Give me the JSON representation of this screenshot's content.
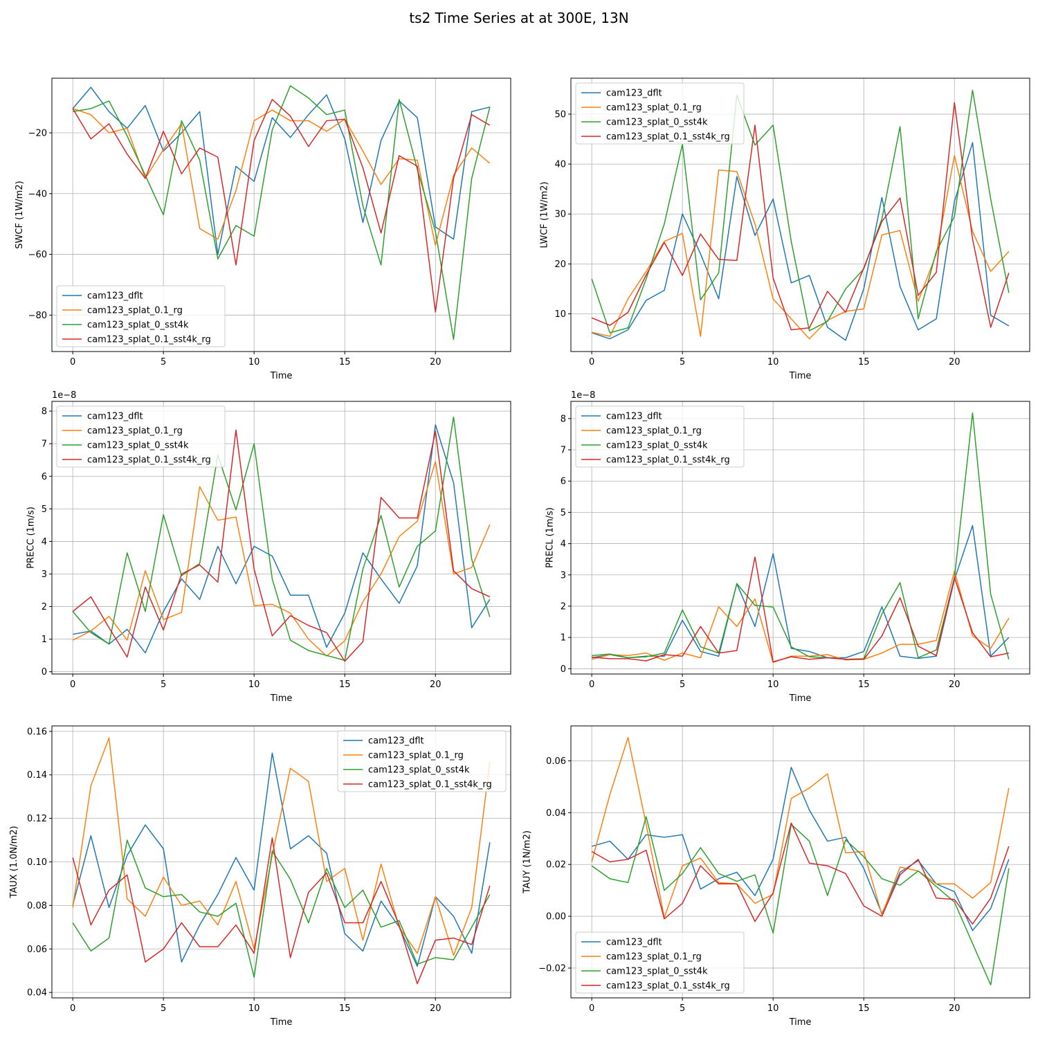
{
  "figure": {
    "title": "ts2 Time Series at at 300E, 13N"
  },
  "colors": {
    "dflt": "#1f77b4",
    "splat_rg": "#ff7f0e",
    "sst4k": "#2ca02c",
    "sst4k_rg": "#d62728",
    "grid": "#b0b0b0"
  },
  "chart_data": [
    {
      "type": "line",
      "xlabel": "Time",
      "ylabel": "SWCF (1W/m2)",
      "offset_text": "",
      "xlim": [
        -1.15,
        24.15
      ],
      "ylim": [
        -92,
        -2
      ],
      "xticks": [
        0,
        5,
        10,
        15,
        20
      ],
      "xtick_labels": [
        "0",
        "5",
        "10",
        "15",
        "20"
      ],
      "yticks": [
        -80,
        -60,
        -40,
        -20
      ],
      "ytick_labels": [
        "−80",
        "−60",
        "−40",
        "−20"
      ],
      "legend_loc": "lower-left",
      "x": [
        0,
        1,
        2,
        3,
        4,
        5,
        6,
        7,
        8,
        9,
        10,
        11,
        12,
        13,
        14,
        15,
        16,
        17,
        18,
        19,
        20,
        21,
        22,
        23
      ],
      "series": [
        {
          "name": "cam123_dflt",
          "color_key": "dflt",
          "values": [
            -12,
            -5,
            -13,
            -18.5,
            -11,
            -26,
            -20,
            -13,
            -60,
            -31,
            -36,
            -15,
            -21.5,
            -14,
            -7.5,
            -22,
            -49.5,
            -22.5,
            -9.5,
            -15,
            -51,
            -55,
            -13,
            -11.5
          ]
        },
        {
          "name": "cam123_splat_0.1_rg",
          "color_key": "splat_rg",
          "values": [
            -12,
            -14,
            -20,
            -18.5,
            -35,
            -25.5,
            -17,
            -51.5,
            -55,
            -39,
            -16,
            -12.5,
            -16,
            -16,
            -19.5,
            -15.5,
            -26,
            -37,
            -28.5,
            -29,
            -57,
            -34,
            -25,
            -30
          ]
        },
        {
          "name": "cam123_splat_0_sst4k",
          "color_key": "sst4k",
          "values": [
            -13,
            -12,
            -9.5,
            -21,
            -34,
            -47,
            -16,
            -29,
            -61.5,
            -50.5,
            -54,
            -19,
            -4.5,
            -8.5,
            -14,
            -12.5,
            -44,
            -63.5,
            -9,
            -32,
            -52.5,
            -88,
            -35,
            -11.5
          ]
        },
        {
          "name": "cam123_splat_0.1_sst4k_rg",
          "color_key": "sst4k_rg",
          "values": [
            -12,
            -22,
            -17,
            -27,
            -35,
            -19.5,
            -33.5,
            -25,
            -28,
            -63.5,
            -22.5,
            -9,
            -14.5,
            -24.5,
            -16,
            -15.5,
            -31.5,
            -53,
            -27.5,
            -31,
            -79,
            -35,
            -14,
            -17.5
          ]
        }
      ]
    },
    {
      "type": "line",
      "xlabel": "Time",
      "ylabel": "LWCF (1W/m2)",
      "offset_text": "",
      "xlim": [
        -1.15,
        24.15
      ],
      "ylim": [
        2.45,
        57.2
      ],
      "xticks": [
        0,
        5,
        10,
        15,
        20
      ],
      "xtick_labels": [
        "0",
        "5",
        "10",
        "15",
        "20"
      ],
      "yticks": [
        10,
        20,
        30,
        40,
        50
      ],
      "ytick_labels": [
        "10",
        "20",
        "30",
        "40",
        "50"
      ],
      "legend_loc": "upper-left",
      "x": [
        0,
        1,
        2,
        3,
        4,
        5,
        6,
        7,
        8,
        9,
        10,
        11,
        12,
        13,
        14,
        15,
        16,
        17,
        18,
        19,
        20,
        21,
        22,
        23
      ],
      "series": [
        {
          "name": "cam123_dflt",
          "color_key": "dflt",
          "values": [
            6.2,
            5,
            6.8,
            12.7,
            14.7,
            30,
            22,
            13,
            37.5,
            25.7,
            33,
            16.2,
            17.7,
            7.3,
            4.7,
            15,
            33.3,
            15.5,
            6.8,
            9,
            32.5,
            44.3,
            9.7,
            7.6
          ]
        },
        {
          "name": "cam123_splat_0.1_rg",
          "color_key": "splat_rg",
          "values": [
            6.3,
            5.5,
            13,
            18.5,
            24.5,
            26.1,
            5.5,
            38.8,
            38.5,
            28,
            13,
            9,
            5,
            8.7,
            10.5,
            11,
            25.8,
            26.7,
            12.5,
            22,
            41.7,
            26.5,
            18.5,
            22.5
          ]
        },
        {
          "name": "cam123_splat_0_sst4k",
          "color_key": "sst4k",
          "values": [
            17,
            6.2,
            7.2,
            17,
            28,
            44,
            12.8,
            18.2,
            53.8,
            43.8,
            47.8,
            24.5,
            6.6,
            8.5,
            15,
            19,
            29,
            47.5,
            9,
            22.5,
            29.5,
            54.8,
            33,
            14.2
          ]
        },
        {
          "name": "cam123_splat_0.1_sst4k_rg",
          "color_key": "sst4k_rg",
          "values": [
            9.2,
            7.7,
            10.3,
            17.8,
            24.3,
            17.7,
            26,
            20.9,
            20.7,
            47.8,
            17.2,
            6.8,
            7.2,
            14.5,
            10.3,
            19.2,
            28.5,
            33.2,
            13.7,
            18.3,
            52.3,
            25,
            7.3,
            18.2
          ]
        }
      ]
    },
    {
      "type": "line",
      "xlabel": "Time",
      "ylabel": "PRECC (1m/s)",
      "offset_text": "1e−8",
      "xlim": [
        -1.15,
        24.15
      ],
      "ylim": [
        -0.07,
        8.3
      ],
      "xticks": [
        0,
        5,
        10,
        15,
        20
      ],
      "xtick_labels": [
        "0",
        "5",
        "10",
        "15",
        "20"
      ],
      "yticks": [
        0,
        1,
        2,
        3,
        4,
        5,
        6,
        7,
        8
      ],
      "ytick_labels": [
        "0",
        "1",
        "2",
        "3",
        "4",
        "5",
        "6",
        "7",
        "8"
      ],
      "legend_loc": "upper-left",
      "x": [
        0,
        1,
        2,
        3,
        4,
        5,
        6,
        7,
        8,
        9,
        10,
        11,
        12,
        13,
        14,
        15,
        16,
        17,
        18,
        19,
        20,
        21,
        22,
        23
      ],
      "series": [
        {
          "name": "cam123_dflt",
          "color_key": "dflt",
          "values": [
            1.15,
            1.25,
            0.85,
            1.3,
            0.58,
            1.85,
            2.85,
            2.22,
            3.85,
            2.7,
            3.85,
            3.55,
            2.35,
            2.35,
            0.75,
            1.8,
            3.65,
            2.85,
            2.1,
            3.25,
            7.58,
            5.8,
            1.35,
            2.22
          ]
        },
        {
          "name": "cam123_splat_0.1_rg",
          "color_key": "splat_rg",
          "values": [
            0.97,
            1.25,
            1.7,
            0.97,
            3.1,
            1.6,
            1.82,
            5.68,
            4.65,
            4.75,
            2.03,
            2.07,
            1.8,
            1,
            0.48,
            0.95,
            2.15,
            3,
            4.15,
            4.62,
            6.45,
            3,
            3.2,
            4.52
          ]
        },
        {
          "name": "cam123_splat_0_sst4k",
          "color_key": "sst4k",
          "values": [
            1.85,
            1.2,
            0.85,
            3.65,
            1.85,
            4.82,
            2.95,
            3.32,
            6.65,
            4.97,
            7,
            2.85,
            0.97,
            0.65,
            0.5,
            0.35,
            3.15,
            4.8,
            2.6,
            3.85,
            4.32,
            7.82,
            3.45,
            1.68
          ]
        },
        {
          "name": "cam123_splat_0.1_sst4k_rg",
          "color_key": "sst4k_rg",
          "values": [
            1.85,
            2.3,
            1.35,
            0.45,
            2.6,
            1.28,
            3,
            3.28,
            2.75,
            7.42,
            3.15,
            1.1,
            1.72,
            1.42,
            1.2,
            0.32,
            0.92,
            5.35,
            4.72,
            4.72,
            7.38,
            3.1,
            2.55,
            2.3
          ]
        }
      ]
    },
    {
      "type": "line",
      "xlabel": "Time",
      "ylabel": "PRECL (1m/s)",
      "offset_text": "1e−8",
      "xlim": [
        -1.15,
        24.15
      ],
      "ylim": [
        -0.17,
        8.55
      ],
      "xticks": [
        0,
        5,
        10,
        15,
        20
      ],
      "xtick_labels": [
        "0",
        "5",
        "10",
        "15",
        "20"
      ],
      "yticks": [
        0,
        1,
        2,
        3,
        4,
        5,
        6,
        7,
        8
      ],
      "ytick_labels": [
        "0",
        "1",
        "2",
        "3",
        "4",
        "5",
        "6",
        "7",
        "8"
      ],
      "legend_loc": "upper-left",
      "x": [
        0,
        1,
        2,
        3,
        4,
        5,
        6,
        7,
        8,
        9,
        10,
        11,
        12,
        13,
        14,
        15,
        16,
        17,
        18,
        19,
        20,
        21,
        22,
        23
      ],
      "series": [
        {
          "name": "cam123_dflt",
          "color_key": "dflt",
          "values": [
            0.35,
            0.45,
            0.35,
            0.4,
            0.4,
            1.55,
            0.55,
            0.4,
            2.72,
            1.35,
            3.68,
            0.65,
            0.55,
            0.35,
            0.35,
            0.55,
            1.98,
            0.4,
            0.33,
            0.4,
            2.85,
            4.58,
            0.4,
            1
          ]
        },
        {
          "name": "cam123_splat_0.1_rg",
          "color_key": "splat_rg",
          "values": [
            0.3,
            0.45,
            0.42,
            0.5,
            0.27,
            0.5,
            0.35,
            1.98,
            1.35,
            2.23,
            0.2,
            0.4,
            0.4,
            0.45,
            0.28,
            0.3,
            0.5,
            0.78,
            0.78,
            0.9,
            3.12,
            1.05,
            0.65,
            1.62
          ]
        },
        {
          "name": "cam123_splat_0_sst4k",
          "color_key": "sst4k",
          "values": [
            0.42,
            0.47,
            0.35,
            0.38,
            0.5,
            1.88,
            0.7,
            0.5,
            2.72,
            2.03,
            1.97,
            0.7,
            0.38,
            0.35,
            0.3,
            0.32,
            1.75,
            2.75,
            0.35,
            0.6,
            2.9,
            8.18,
            2.38,
            0.3
          ]
        },
        {
          "name": "cam123_splat_0.1_sst4k_rg",
          "color_key": "sst4k_rg",
          "values": [
            0.37,
            0.32,
            0.32,
            0.25,
            0.45,
            0.4,
            1.35,
            0.5,
            0.58,
            3.57,
            0.22,
            0.38,
            0.3,
            0.35,
            0.3,
            0.3,
            1.05,
            2.27,
            0.72,
            0.42,
            2.92,
            1.15,
            0.38,
            0.5
          ]
        }
      ]
    },
    {
      "type": "line",
      "xlabel": "Time",
      "ylabel": "TAUX (1.0N/m2)",
      "offset_text": "",
      "xlim": [
        -1.15,
        24.15
      ],
      "ylim": [
        0.0375,
        0.1625
      ],
      "xticks": [
        0,
        5,
        10,
        15,
        20
      ],
      "xtick_labels": [
        "0",
        "5",
        "10",
        "15",
        "20"
      ],
      "yticks": [
        0.04,
        0.06,
        0.08,
        0.1,
        0.12,
        0.14,
        0.16
      ],
      "ytick_labels": [
        "0.04",
        "0.06",
        "0.08",
        "0.10",
        "0.12",
        "0.14",
        "0.16"
      ],
      "legend_loc": "upper-right",
      "x": [
        0,
        1,
        2,
        3,
        4,
        5,
        6,
        7,
        8,
        9,
        10,
        11,
        12,
        13,
        14,
        15,
        16,
        17,
        18,
        19,
        20,
        21,
        22,
        23
      ],
      "series": [
        {
          "name": "cam123_dflt",
          "color_key": "dflt",
          "values": [
            0.08,
            0.112,
            0.079,
            0.103,
            0.117,
            0.106,
            0.054,
            0.071,
            0.085,
            0.102,
            0.087,
            0.15,
            0.106,
            0.112,
            0.104,
            0.067,
            0.059,
            0.082,
            0.07,
            0.052,
            0.084,
            0.075,
            0.058,
            0.109
          ]
        },
        {
          "name": "cam123_splat_0.1_rg",
          "color_key": "splat_rg",
          "values": [
            0.079,
            0.135,
            0.157,
            0.083,
            0.075,
            0.093,
            0.08,
            0.082,
            0.071,
            0.091,
            0.06,
            0.103,
            0.143,
            0.137,
            0.091,
            0.097,
            0.064,
            0.099,
            0.07,
            0.058,
            0.084,
            0.057,
            0.079,
            0.146
          ]
        },
        {
          "name": "cam123_splat_0_sst4k",
          "color_key": "sst4k",
          "values": [
            0.072,
            0.059,
            0.065,
            0.11,
            0.088,
            0.084,
            0.085,
            0.077,
            0.075,
            0.081,
            0.047,
            0.105,
            0.092,
            0.072,
            0.097,
            0.079,
            0.087,
            0.07,
            0.073,
            0.053,
            0.056,
            0.055,
            0.07,
            0.085
          ]
        },
        {
          "name": "cam123_splat_0.1_sst4k_rg",
          "color_key": "sst4k_rg",
          "values": [
            0.102,
            0.071,
            0.087,
            0.094,
            0.054,
            0.06,
            0.072,
            0.061,
            0.061,
            0.071,
            0.058,
            0.111,
            0.056,
            0.086,
            0.095,
            0.072,
            0.072,
            0.091,
            0.071,
            0.044,
            0.064,
            0.065,
            0.062,
            0.089
          ]
        }
      ]
    },
    {
      "type": "line",
      "xlabel": "Time",
      "ylabel": "TAUY (1N/m2)",
      "offset_text": "",
      "xlim": [
        -1.15,
        24.15
      ],
      "ylim": [
        -0.0315,
        0.0735
      ],
      "xticks": [
        0,
        5,
        10,
        15,
        20
      ],
      "xtick_labels": [
        "0",
        "5",
        "10",
        "15",
        "20"
      ],
      "yticks": [
        -0.02,
        0.0,
        0.02,
        0.04,
        0.06
      ],
      "ytick_labels": [
        "−0.02",
        "0.00",
        "0.02",
        "0.04",
        "0.06"
      ],
      "legend_loc": "lower-left",
      "x": [
        0,
        1,
        2,
        3,
        4,
        5,
        6,
        7,
        8,
        9,
        10,
        11,
        12,
        13,
        14,
        15,
        16,
        17,
        18,
        19,
        20,
        21,
        22,
        23
      ],
      "series": [
        {
          "name": "cam123_dflt",
          "color_key": "dflt",
          "values": [
            0.027,
            0.029,
            0.022,
            0.0315,
            0.0305,
            0.0315,
            0.0105,
            0.0145,
            0.017,
            0.008,
            0.022,
            0.0575,
            0.041,
            0.029,
            0.0305,
            0.0185,
            0.001,
            0.017,
            0.0215,
            0.0125,
            0.0095,
            -0.0055,
            0.003,
            0.022
          ]
        },
        {
          "name": "cam123_splat_0.1_rg",
          "color_key": "splat_rg",
          "values": [
            0.021,
            0.047,
            0.069,
            0.0355,
            -0.0005,
            0.0195,
            0.0225,
            0.013,
            0.0125,
            0.005,
            0.0085,
            0.0455,
            0.0495,
            0.055,
            0.0245,
            0.025,
            0.0005,
            0.019,
            0.0175,
            0.0125,
            0.0125,
            0.007,
            0.013,
            0.0495
          ]
        },
        {
          "name": "cam123_splat_0_sst4k",
          "color_key": "sst4k",
          "values": [
            0.0195,
            0.0145,
            0.013,
            0.0385,
            0.01,
            0.0165,
            0.0265,
            0.0165,
            0.0135,
            0.016,
            -0.0065,
            0.0355,
            0.029,
            0.008,
            0.0295,
            0.023,
            0.0145,
            0.012,
            0.0175,
            0.0115,
            0.0055,
            -0.0105,
            -0.0265,
            0.0185
          ]
        },
        {
          "name": "cam123_splat_0.1_sst4k_rg",
          "color_key": "sst4k_rg",
          "values": [
            0.025,
            0.021,
            0.022,
            0.0255,
            -0.001,
            0.005,
            0.0195,
            0.0125,
            0.0125,
            -0.002,
            0.009,
            0.036,
            0.0205,
            0.0195,
            0.0165,
            0.004,
            0.0,
            0.016,
            0.022,
            0.007,
            0.0065,
            -0.003,
            0.007,
            0.027
          ]
        }
      ]
    }
  ]
}
